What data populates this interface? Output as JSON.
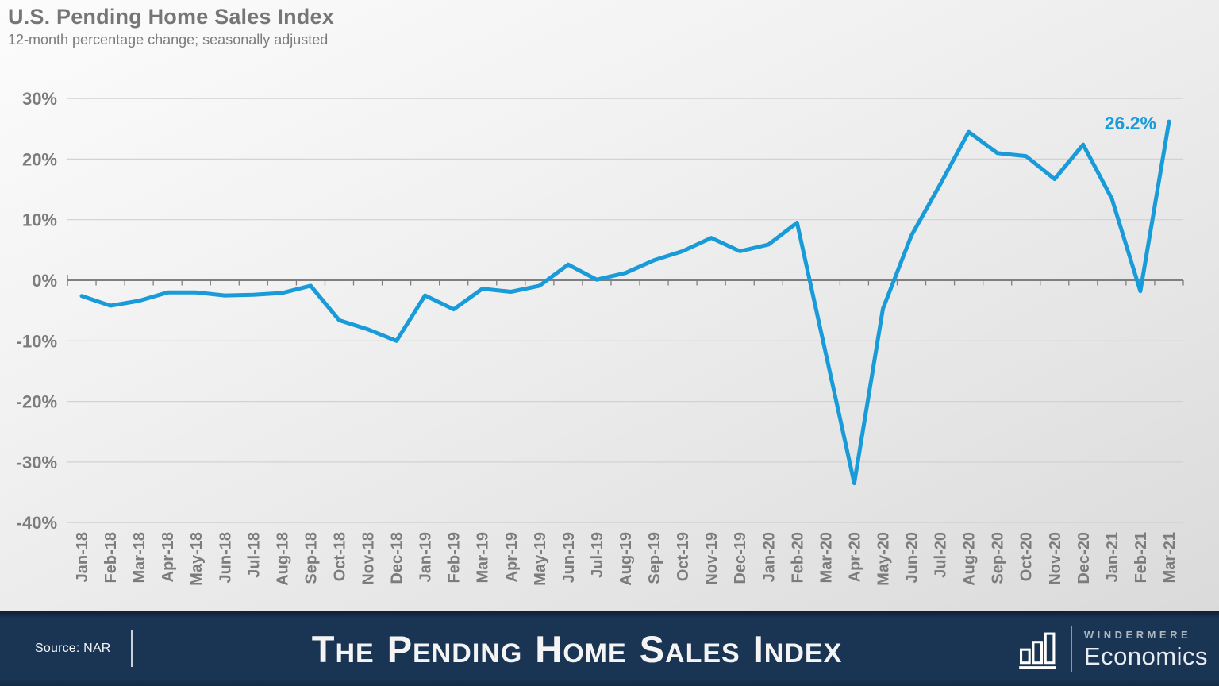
{
  "header": {
    "title": "U.S. Pending Home Sales Index",
    "subtitle": "12-month percentage change; seasonally adjusted"
  },
  "chart_data": {
    "type": "line",
    "title": "U.S. Pending Home Sales Index",
    "subtitle": "12-month percentage change; seasonally adjusted",
    "categories": [
      "Jan-18",
      "Feb-18",
      "Mar-18",
      "Apr-18",
      "May-18",
      "Jun-18",
      "Jul-18",
      "Aug-18",
      "Sep-18",
      "Oct-18",
      "Nov-18",
      "Dec-18",
      "Jan-19",
      "Feb-19",
      "Mar-19",
      "Apr-19",
      "May-19",
      "Jun-19",
      "Jul-19",
      "Aug-19",
      "Sep-19",
      "Oct-19",
      "Nov-19",
      "Dec-19",
      "Jan-20",
      "Feb-20",
      "Mar-20",
      "Apr-20",
      "May-20",
      "Jun-20",
      "Jul-20",
      "Aug-20",
      "Sep-20",
      "Oct-20",
      "Nov-20",
      "Dec-20",
      "Jan-21",
      "Feb-21",
      "Mar-21"
    ],
    "values": [
      -2.6,
      -4.2,
      -3.4,
      -2.0,
      -2.0,
      -2.5,
      -2.4,
      -2.1,
      -0.9,
      -6.6,
      -8.1,
      -10.0,
      -2.5,
      -4.8,
      -1.4,
      -1.9,
      -0.9,
      2.6,
      0.1,
      1.2,
      3.3,
      4.8,
      7.0,
      4.8,
      5.9,
      9.5,
      -12.0,
      -33.5,
      -4.7,
      7.4,
      15.8,
      24.5,
      21.0,
      20.5,
      16.7,
      22.4,
      13.5,
      -1.8,
      26.2
    ],
    "ylim": [
      -40,
      30
    ],
    "ytick_step": 10,
    "ytick_suffix": "%",
    "grid": true,
    "legend": "none",
    "annotation": {
      "text": "26.2%",
      "point": "Mar-21"
    },
    "colors": {
      "line": "#189BD8",
      "gridline": "#d2d2d2",
      "zero_axis": "#7f7f7f",
      "axis_text": "#7c7c7c",
      "annotation_text": "#189BD8"
    }
  },
  "footer": {
    "source": "Source: NAR",
    "banner_title": "The Pending Home Sales Index",
    "brand": {
      "name": "WINDERMERE",
      "division": "Economics",
      "icon": "bar-chart-icon"
    },
    "colors": {
      "background": "#1A3454"
    }
  }
}
